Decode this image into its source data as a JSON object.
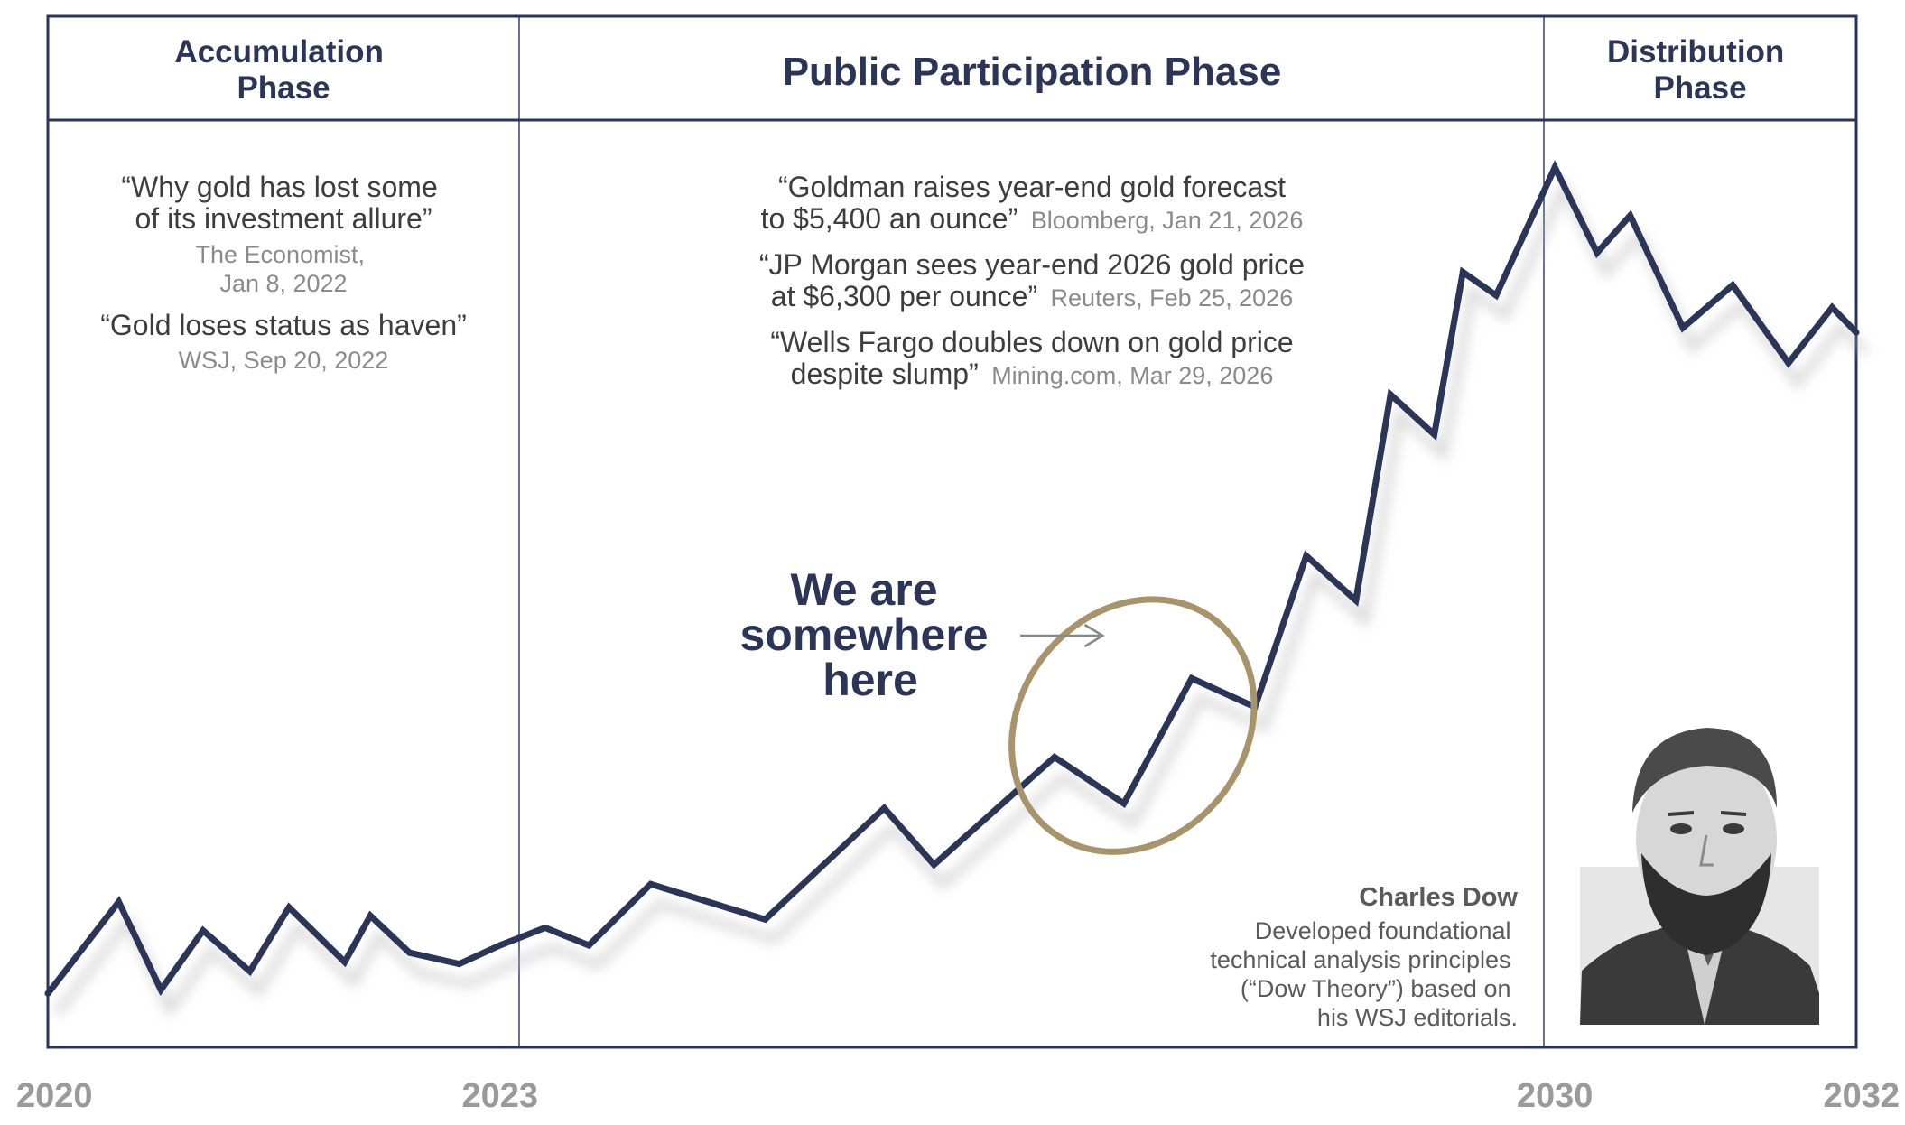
{
  "colors": {
    "navy": "#2a3558",
    "gold": "#a8946a",
    "tick_gray": "#9a9a9a",
    "source_gray": "#8a8a8a"
  },
  "phases": {
    "accumulation": {
      "line1": "Accumulation",
      "line2": "Phase"
    },
    "public": {
      "label": "Public Participation Phase"
    },
    "distribution": {
      "line1": "Distribution",
      "line2": "Phase"
    }
  },
  "accumulation_quotes": [
    {
      "lines": [
        "“Why gold has lost some",
        "of its investment allure”"
      ],
      "source_lines": [
        "The Economist,",
        "Jan 8, 2022"
      ]
    },
    {
      "lines": [
        "“Gold loses status as haven”"
      ],
      "source_lines": [
        "WSJ, Sep 20, 2022"
      ]
    }
  ],
  "public_quotes": [
    {
      "line1": "“Goldman raises year-end gold forecast",
      "line2": "to $5,400 an ounce”",
      "source": "Bloomberg, Jan 21, 2026"
    },
    {
      "line1": "“JP Morgan sees year-end 2026 gold price",
      "line2": "at $6,300 per ounce”",
      "source": "Reuters, Feb 25, 2026"
    },
    {
      "line1": "“Wells Fargo doubles down on gold price",
      "line2": "despite slump”",
      "source": "Mining.com, Mar 29, 2026"
    }
  ],
  "callout": {
    "lines": [
      "We are",
      "somewhere",
      "here"
    ]
  },
  "charles_dow": {
    "name": "Charles Dow",
    "description_lines": [
      "Developed foundational",
      "technical analysis principles",
      "(“Dow Theory”) based on",
      "his WSJ editorials."
    ]
  },
  "chart_data": {
    "type": "line",
    "title": "",
    "xlabel": "",
    "ylabel": "",
    "xlim": [
      2020,
      2032
    ],
    "ylim": [
      0,
      100
    ],
    "x_ticks": [
      "2020",
      "2023",
      "2030",
      "2032"
    ],
    "grid": false,
    "series": [
      {
        "points": [
          [
            2020.0,
            5.8
          ],
          [
            2020.47,
            15.7
          ],
          [
            2020.75,
            6.2
          ],
          [
            2021.03,
            12.6
          ],
          [
            2021.34,
            8.2
          ],
          [
            2021.6,
            15.1
          ],
          [
            2021.97,
            9.2
          ],
          [
            2022.14,
            14.2
          ],
          [
            2022.4,
            10.2
          ],
          [
            2022.73,
            9.0
          ],
          [
            2023.0,
            11.0
          ],
          [
            2023.3,
            12.9
          ],
          [
            2023.59,
            11.0
          ],
          [
            2024.0,
            17.6
          ],
          [
            2024.76,
            13.8
          ],
          [
            2025.55,
            25.8
          ],
          [
            2025.88,
            19.7
          ],
          [
            2026.68,
            31.3
          ],
          [
            2027.14,
            26.3
          ],
          [
            2027.59,
            39.8
          ],
          [
            2028.01,
            36.7
          ],
          [
            2028.35,
            53.0
          ],
          [
            2028.68,
            48.2
          ],
          [
            2028.91,
            70.4
          ],
          [
            2029.2,
            66.1
          ],
          [
            2029.39,
            83.6
          ],
          [
            2029.61,
            81.1
          ],
          [
            2030.0,
            94.9
          ],
          [
            2030.28,
            85.7
          ],
          [
            2030.5,
            89.7
          ],
          [
            2030.85,
            77.6
          ],
          [
            2031.18,
            82.2
          ],
          [
            2031.55,
            73.8
          ],
          [
            2031.84,
            79.8
          ],
          [
            2032.0,
            77.1
          ]
        ]
      }
    ],
    "highlight_ellipse_center": [
      2027.2,
      34.7
    ],
    "arrow_target_x": 2027.0
  }
}
